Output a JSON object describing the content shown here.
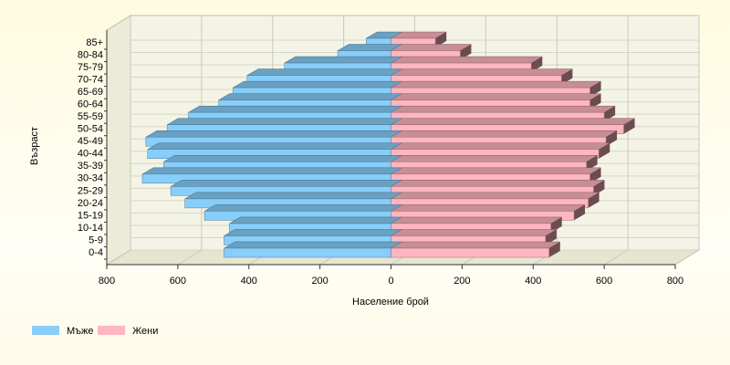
{
  "chart_data": {
    "type": "pyramid",
    "x_label": "Население брой",
    "y_label": "Възраст",
    "categories": [
      "0-4",
      "5-9",
      "10-14",
      "15-19",
      "20-24",
      "25-29",
      "30-34",
      "35-39",
      "40-44",
      "45-49",
      "50-54",
      "55-59",
      "60-64",
      "65-69",
      "70-74",
      "75-79",
      "80-84",
      "85+"
    ],
    "series": [
      {
        "name": "Мъже",
        "color": "#87cefa",
        "values": [
          -470,
          -470,
          -455,
          -525,
          -580,
          -620,
          -700,
          -640,
          -685,
          -690,
          -630,
          -570,
          -485,
          -445,
          -405,
          -300,
          -150,
          -70
        ]
      },
      {
        "name": "Жени",
        "color": "#ffb6c1",
        "values": [
          445,
          435,
          450,
          515,
          555,
          570,
          560,
          550,
          585,
          605,
          655,
          600,
          560,
          560,
          480,
          395,
          195,
          125
        ]
      }
    ],
    "xlim": [
      -800,
      800
    ],
    "xticks": [
      {
        "value": -800,
        "label": "800"
      },
      {
        "value": -600,
        "label": "600"
      },
      {
        "value": -400,
        "label": "400"
      },
      {
        "value": -200,
        "label": "200"
      },
      0,
      200,
      400,
      600,
      800
    ],
    "grid": true,
    "legend": "bottom-left"
  }
}
